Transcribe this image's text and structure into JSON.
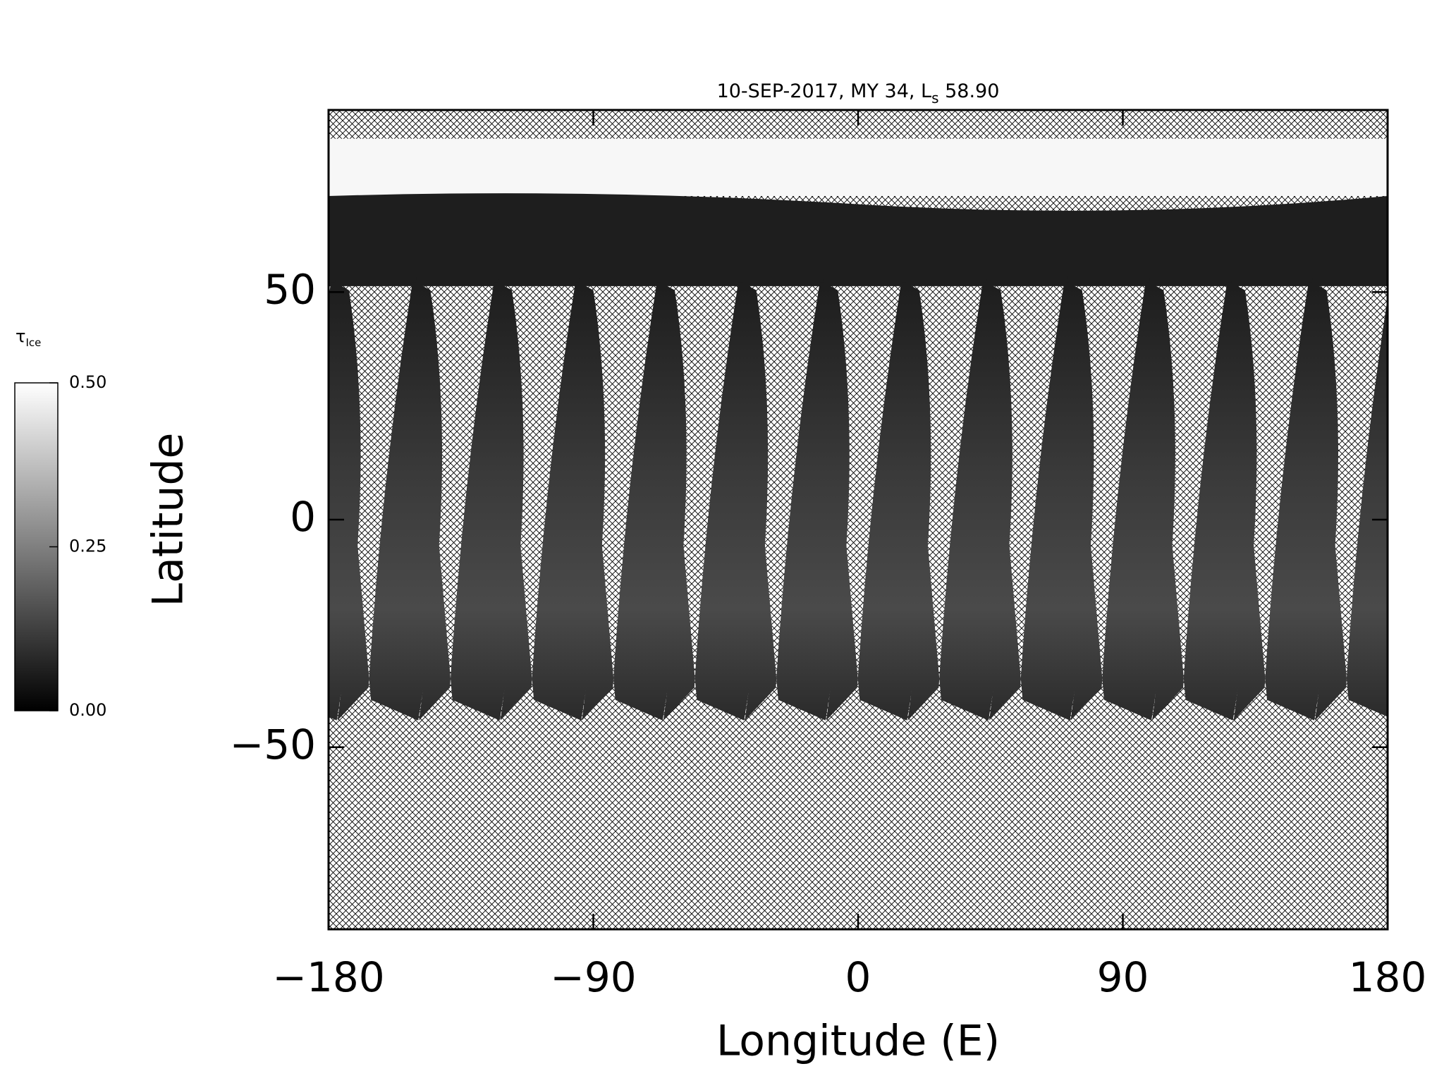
{
  "chart_data": {
    "type": "map",
    "title": {
      "text": "10-SEP-2017, MY 34,  L",
      "subscript": "s",
      "suffix": " 58.90"
    },
    "x_label": "Longitude (E)",
    "y_label": "Latitude",
    "xlim": [
      -180,
      180
    ],
    "xticks": [
      {
        "value": -180,
        "label": "−180"
      },
      {
        "value": -90,
        "label": "−90"
      },
      0,
      90,
      180
    ],
    "ylim": [
      -90,
      90
    ],
    "yticks": [
      {
        "value": -50,
        "label": "−50"
      },
      0,
      50
    ],
    "colorbar": {
      "label": "τ",
      "label_subscript": "Ice",
      "lim": [
        0,
        0.5
      ],
      "ticks": [
        {
          "value": 0,
          "label": "0.00"
        },
        {
          "value": 0.25,
          "label": "0.25"
        },
        {
          "value": 0.5,
          "label": "0.50"
        }
      ]
    }
  }
}
